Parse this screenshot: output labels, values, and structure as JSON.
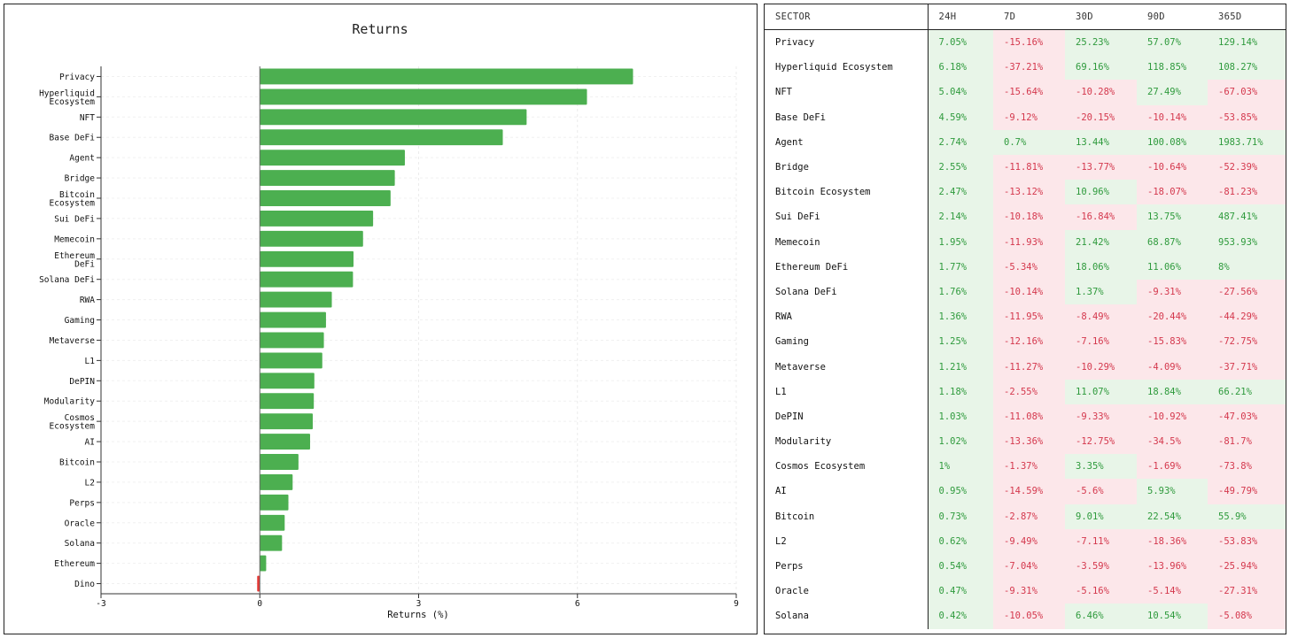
{
  "chart_data": {
    "type": "bar",
    "orientation": "horizontal",
    "title": "Returns",
    "xlabel": "Returns (%)",
    "ylabel": "",
    "xlim": [
      -3,
      9
    ],
    "xticks": [
      "-3",
      "0",
      "3",
      "6",
      "9"
    ],
    "grid": true,
    "colors": {
      "positive": "#4caf50",
      "negative": "#e53935"
    },
    "categories": [
      "Privacy",
      "Hyperliquid Ecosystem",
      "NFT",
      "Base DeFi",
      "Agent",
      "Bridge",
      "Bitcoin Ecosystem",
      "Sui DeFi",
      "Memecoin",
      "Ethereum DeFi",
      "Solana DeFi",
      "RWA",
      "Gaming",
      "Metaverse",
      "L1",
      "DePIN",
      "Modularity",
      "Cosmos Ecosystem",
      "AI",
      "Bitcoin",
      "L2",
      "Perps",
      "Oracle",
      "Solana",
      "Ethereum",
      "Dino"
    ],
    "values": [
      7.05,
      6.18,
      5.04,
      4.59,
      2.74,
      2.55,
      2.47,
      2.14,
      1.95,
      1.77,
      1.76,
      1.36,
      1.25,
      1.21,
      1.18,
      1.03,
      1.02,
      1.0,
      0.95,
      0.73,
      0.62,
      0.54,
      0.47,
      0.42,
      0.12,
      -0.05
    ]
  },
  "table": {
    "headers": [
      "SECTOR",
      "24H",
      "7D",
      "30D",
      "90D",
      "365D"
    ],
    "rows": [
      [
        "Privacy",
        "7.05%",
        "-15.16%",
        "25.23%",
        "57.07%",
        "129.14%"
      ],
      [
        "Hyperliquid Ecosystem",
        "6.18%",
        "-37.21%",
        "69.16%",
        "118.85%",
        "108.27%"
      ],
      [
        "NFT",
        "5.04%",
        "-15.64%",
        "-10.28%",
        "27.49%",
        "-67.03%"
      ],
      [
        "Base DeFi",
        "4.59%",
        "-9.12%",
        "-20.15%",
        "-10.14%",
        "-53.85%"
      ],
      [
        "Agent",
        "2.74%",
        "0.7%",
        "13.44%",
        "100.08%",
        "1983.71%"
      ],
      [
        "Bridge",
        "2.55%",
        "-11.81%",
        "-13.77%",
        "-10.64%",
        "-52.39%"
      ],
      [
        "Bitcoin Ecosystem",
        "2.47%",
        "-13.12%",
        "10.96%",
        "-18.07%",
        "-81.23%"
      ],
      [
        "Sui DeFi",
        "2.14%",
        "-10.18%",
        "-16.84%",
        "13.75%",
        "487.41%"
      ],
      [
        "Memecoin",
        "1.95%",
        "-11.93%",
        "21.42%",
        "68.87%",
        "953.93%"
      ],
      [
        "Ethereum DeFi",
        "1.77%",
        "-5.34%",
        "18.06%",
        "11.06%",
        "8%"
      ],
      [
        "Solana DeFi",
        "1.76%",
        "-10.14%",
        "1.37%",
        "-9.31%",
        "-27.56%"
      ],
      [
        "RWA",
        "1.36%",
        "-11.95%",
        "-8.49%",
        "-20.44%",
        "-44.29%"
      ],
      [
        "Gaming",
        "1.25%",
        "-12.16%",
        "-7.16%",
        "-15.83%",
        "-72.75%"
      ],
      [
        "Metaverse",
        "1.21%",
        "-11.27%",
        "-10.29%",
        "-4.09%",
        "-37.71%"
      ],
      [
        "L1",
        "1.18%",
        "-2.55%",
        "11.07%",
        "18.84%",
        "66.21%"
      ],
      [
        "DePIN",
        "1.03%",
        "-11.08%",
        "-9.33%",
        "-10.92%",
        "-47.03%"
      ],
      [
        "Modularity",
        "1.02%",
        "-13.36%",
        "-12.75%",
        "-34.5%",
        "-81.7%"
      ],
      [
        "Cosmos Ecosystem",
        "1%",
        "-1.37%",
        "3.35%",
        "-1.69%",
        "-73.8%"
      ],
      [
        "AI",
        "0.95%",
        "-14.59%",
        "-5.6%",
        "5.93%",
        "-49.79%"
      ],
      [
        "Bitcoin",
        "0.73%",
        "-2.87%",
        "9.01%",
        "22.54%",
        "55.9%"
      ],
      [
        "L2",
        "0.62%",
        "-9.49%",
        "-7.11%",
        "-18.36%",
        "-53.83%"
      ],
      [
        "Perps",
        "0.54%",
        "-7.04%",
        "-3.59%",
        "-13.96%",
        "-25.94%"
      ],
      [
        "Oracle",
        "0.47%",
        "-9.31%",
        "-5.16%",
        "-5.14%",
        "-27.31%"
      ],
      [
        "Solana",
        "0.42%",
        "-10.05%",
        "6.46%",
        "10.54%",
        "-5.08%"
      ]
    ]
  }
}
